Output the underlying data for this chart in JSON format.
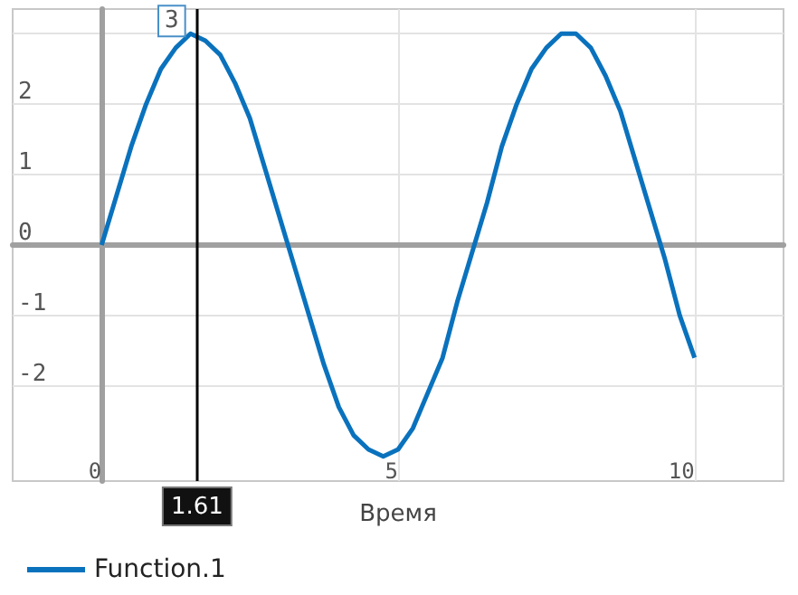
{
  "chart_data": {
    "type": "line",
    "xlabel": "Время",
    "x": [
      0,
      0.25,
      0.5,
      0.75,
      1,
      1.25,
      1.5,
      1.75,
      2,
      2.25,
      2.5,
      2.75,
      3,
      3.25,
      3.5,
      3.75,
      4,
      4.25,
      4.5,
      4.75,
      5,
      5.25,
      5.5,
      5.75,
      6,
      6.25,
      6.5,
      6.75,
      7,
      7.25,
      7.5,
      7.75,
      8,
      8.25,
      8.5,
      8.75,
      9,
      9.25,
      9.5,
      9.75,
      10
    ],
    "series": [
      {
        "name": "Function.1",
        "color": "#0a72bd",
        "values": [
          0,
          0.7,
          1.4,
          2.0,
          2.5,
          2.8,
          3.0,
          2.9,
          2.7,
          2.3,
          1.8,
          1.1,
          0.4,
          -0.3,
          -1.0,
          -1.7,
          -2.3,
          -2.7,
          -2.9,
          -3.0,
          -2.9,
          -2.6,
          -2.1,
          -1.6,
          -0.8,
          -0.1,
          0.6,
          1.4,
          2.0,
          2.5,
          2.8,
          3.0,
          3.0,
          2.8,
          2.4,
          1.9,
          1.2,
          0.5,
          -0.2,
          -1.0,
          -1.6
        ]
      }
    ],
    "xlim": [
      -1.5,
      11.5
    ],
    "xticks": [
      0,
      5,
      10
    ],
    "ylim": [
      -3.35,
      3.35
    ],
    "yticks": [
      -2,
      -1,
      0,
      1,
      2,
      {
        "value": 3,
        "label": null
      }
    ],
    "grid": true,
    "legend": "bottom left",
    "marker": "none",
    "ref_lines": [
      {
        "axis": "x",
        "value": 1.61,
        "label": "1.61",
        "color": "#000000"
      }
    ],
    "annotations": [
      {
        "text": "3",
        "x": 1.61,
        "y": 3
      }
    ]
  }
}
